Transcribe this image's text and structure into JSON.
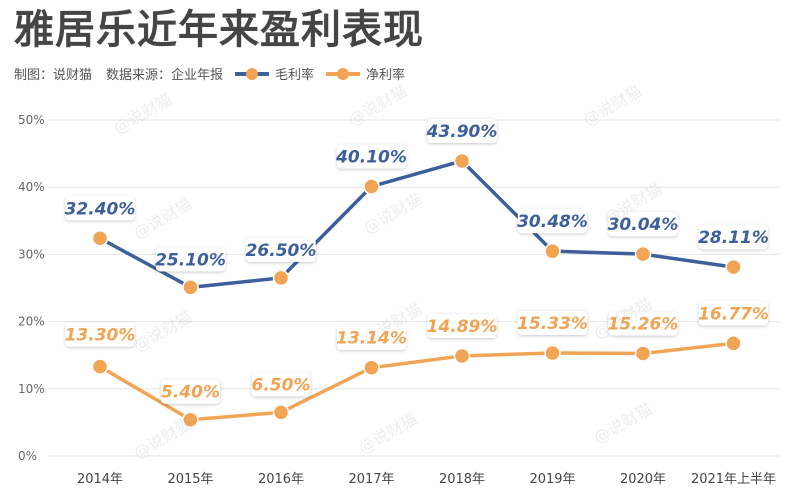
{
  "title": "雅居乐近年来盈利表现",
  "source": {
    "maker": "制图：说财猫",
    "data_source": "数据来源：企业年报"
  },
  "watermark": "@说财猫",
  "colors": {
    "gross": "#3d5f9c",
    "net": "#f1a454",
    "grid": "#e6e6e6",
    "axis_text": "#666666"
  },
  "chart_data": {
    "type": "line",
    "categories": [
      "2014年",
      "2015年",
      "2016年",
      "2017年",
      "2018年",
      "2019年",
      "2020年",
      "2021年上半年"
    ],
    "ylim": [
      0,
      50
    ],
    "yticks": [
      "0%",
      "10%",
      "20%",
      "30%",
      "40%",
      "50%"
    ],
    "legend_position": "top-left",
    "grid": true,
    "series": [
      {
        "key": "gross",
        "name": "毛利率",
        "values": [
          32.4,
          25.1,
          26.5,
          40.1,
          43.9,
          30.48,
          30.04,
          28.11
        ],
        "labels": [
          "32.40%",
          "25.10%",
          "26.50%",
          "40.10%",
          "43.90%",
          "30.48%",
          "30.04%",
          "28.11%"
        ]
      },
      {
        "key": "net",
        "name": "净利率",
        "values": [
          13.3,
          5.4,
          6.5,
          13.14,
          14.89,
          15.33,
          15.26,
          16.77
        ],
        "labels": [
          "13.30%",
          "5.40%",
          "6.50%",
          "13.14%",
          "14.89%",
          "15.33%",
          "15.26%",
          "16.77%"
        ]
      }
    ]
  }
}
